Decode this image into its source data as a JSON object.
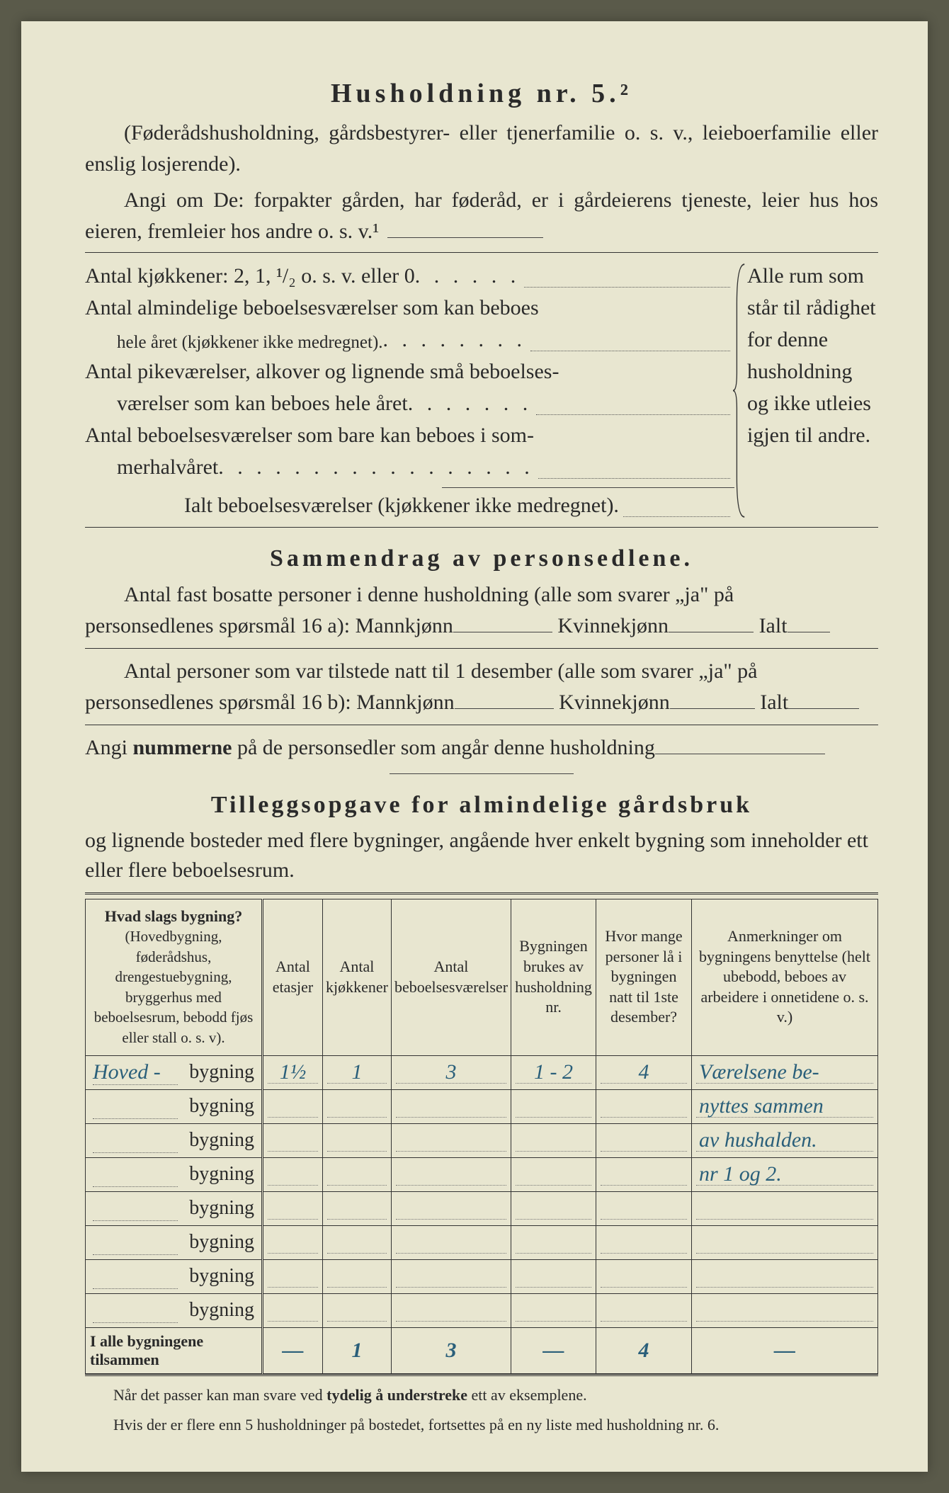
{
  "header": {
    "title": "Husholdning nr. 5.²",
    "subtitle": "(Føderådshusholdning, gårdsbestyrer- eller tjenerfamilie o. s. v., leieboerfamilie eller enslig losjerende).",
    "instruction": "Angi om De: forpakter gården, har føderåd, er i gårdeierens tjeneste, leier hus hos eieren, fremleier hos andre o. s. v.¹"
  },
  "rooms": {
    "q1": "Antal kjøkkener: 2, 1, ¹/₂ o. s. v. eller 0",
    "q2a": "Antal almindelige beboelsesværelser som kan beboes",
    "q2b": "hele året (kjøkkener ikke medregnet).",
    "q3a": "Antal pikeværelser, alkover og lignende små beboelses-",
    "q3b": "værelser som kan beboes hele året",
    "q4a": "Antal beboelsesværelser som bare kan beboes i som-",
    "q4b": "merhalvåret",
    "total": "Ialt beboelsesværelser  (kjøkkener ikke medregnet).",
    "side_note": "Alle rum som står til rådighet for denne husholdning og ikke utleies igjen til andre."
  },
  "summary": {
    "title": "Sammendrag av personsedlene.",
    "line1a": "Antal fast bosatte personer i denne husholdning (alle som svarer „ja\" på",
    "line1b": "personsedlenes spørsmål 16 a): Mannkjønn",
    "kv": "Kvinnekjønn",
    "ialt": "Ialt",
    "line2a": "Antal personer som var tilstede natt til 1 desember (alle som svarer „ja\" på",
    "line2b": "personsedlenes spørsmål 16 b): Mannkjønn",
    "line3": "Angi nummerne på de personsedler som angår denne husholdning"
  },
  "tillegg": {
    "title": "Tilleggsopgave for almindelige gårdsbruk",
    "intro": "og lignende bosteder med flere bygninger, angående hver enkelt bygning som inneholder ett eller flere beboelsesrum.",
    "headers": {
      "h1a": "Hvad slags bygning?",
      "h1b": "(Hovedbygning, føderådshus, drengestuebygning, bryggerhus med beboelsesrum, bebodd fjøs eller stall o. s. v).",
      "h2": "Antal etasjer",
      "h3": "Antal kjøkkener",
      "h4": "Antal beboelsesværelser",
      "h5": "Bygningen brukes av husholdning nr.",
      "h6": "Hvor mange personer lå i bygningen natt til 1ste desember?",
      "h7": "Anmerkninger om bygningens benyttelse (helt ubebodd, beboes av arbeidere i onnetidene o. s. v.)"
    },
    "row_label": "bygning",
    "rows": [
      {
        "prefix": "Hoved -",
        "etasjer": "1½",
        "kjokkener": "1",
        "vaerelser": "3",
        "hushold": "1 - 2",
        "personer": "4",
        "remark": "Værelsene be-"
      },
      {
        "prefix": "",
        "etasjer": "",
        "kjokkener": "",
        "vaerelser": "",
        "hushold": "",
        "personer": "",
        "remark": "nyttes sammen"
      },
      {
        "prefix": "",
        "etasjer": "",
        "kjokkener": "",
        "vaerelser": "",
        "hushold": "",
        "personer": "",
        "remark": "av hushalden."
      },
      {
        "prefix": "",
        "etasjer": "",
        "kjokkener": "",
        "vaerelser": "",
        "hushold": "",
        "personer": "",
        "remark": "nr 1 og 2."
      },
      {
        "prefix": "",
        "etasjer": "",
        "kjokkener": "",
        "vaerelser": "",
        "hushold": "",
        "personer": "",
        "remark": ""
      },
      {
        "prefix": "",
        "etasjer": "",
        "kjokkener": "",
        "vaerelser": "",
        "hushold": "",
        "personer": "",
        "remark": ""
      },
      {
        "prefix": "",
        "etasjer": "",
        "kjokkener": "",
        "vaerelser": "",
        "hushold": "",
        "personer": "",
        "remark": ""
      },
      {
        "prefix": "",
        "etasjer": "",
        "kjokkener": "",
        "vaerelser": "",
        "hushold": "",
        "personer": "",
        "remark": ""
      }
    ],
    "totals": {
      "label": "I alle bygningene tilsammen",
      "etasjer": "—",
      "kjokkener": "1",
      "vaerelser": "3",
      "hushold": "—",
      "personer": "4",
      "remark": "—"
    }
  },
  "footnotes": {
    "f1": "Når det passer kan man svare ved tydelig å understreke ett av eksemplene.",
    "f1_bold": "tydelig å understreke",
    "f2": "Hvis der er flere enn 5 husholdninger på bostedet, fortsettes på en ny liste med husholdning nr. 6."
  },
  "colors": {
    "paper": "#e8e6d0",
    "ink": "#2a2a2a",
    "handwriting": "#2a5f7a"
  }
}
